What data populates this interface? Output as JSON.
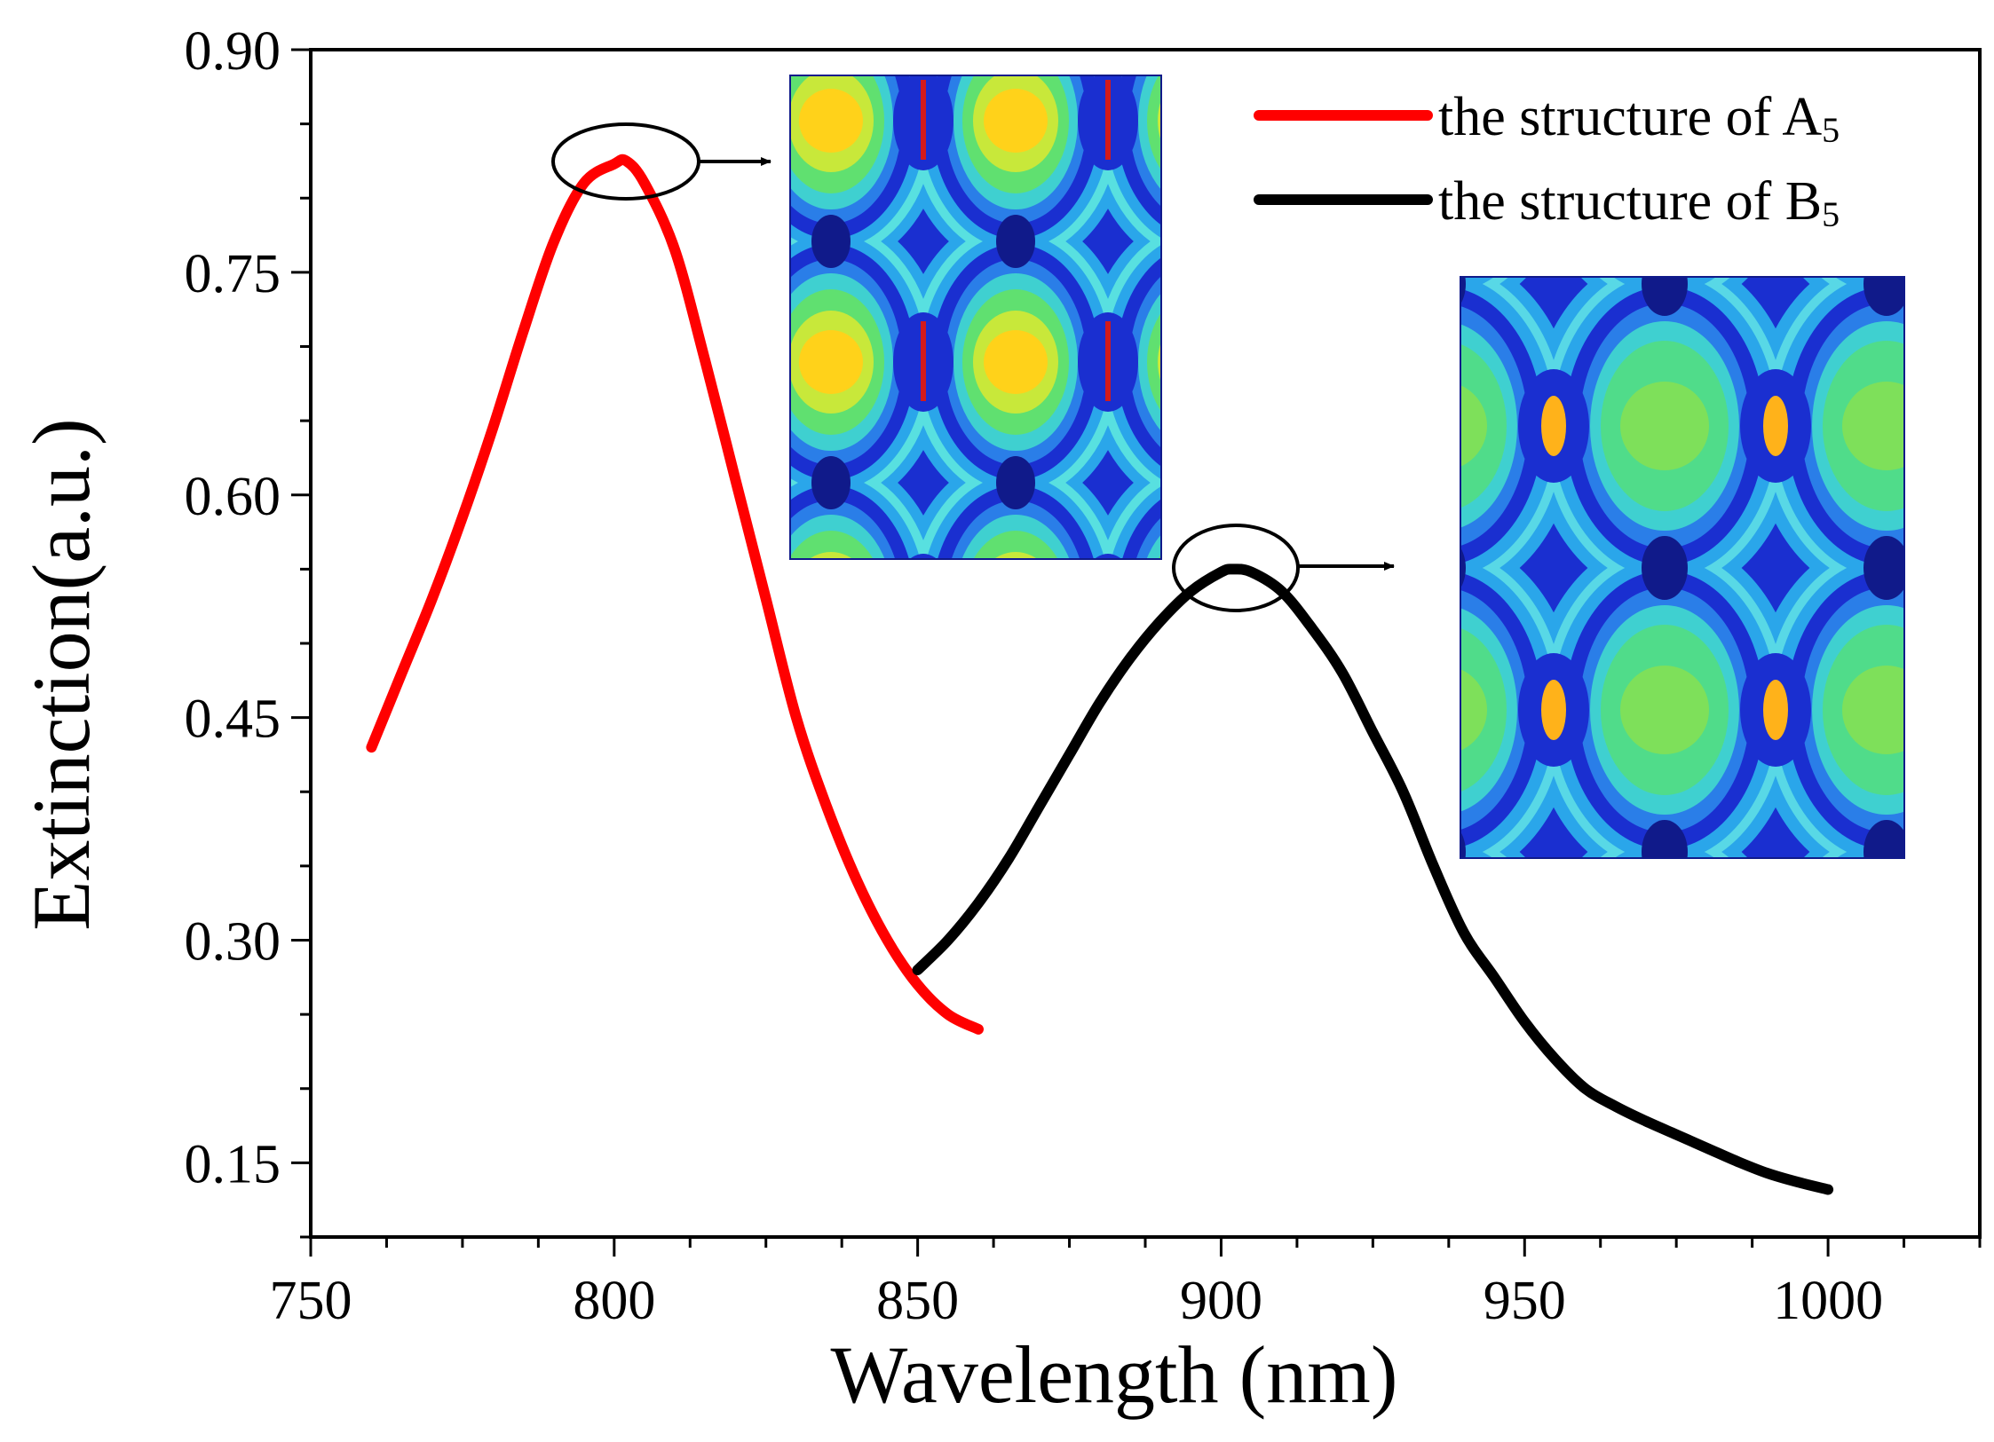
{
  "chart_data": {
    "type": "line",
    "title": "",
    "xlabel": "Wavelength (nm)",
    "ylabel": "Extinction(a.u.)",
    "xlim": [
      750,
      1025
    ],
    "ylim": [
      0.1,
      0.9
    ],
    "xticks": [
      750,
      800,
      850,
      900,
      950,
      1000
    ],
    "xtick_labels": [
      "750",
      "800",
      "850",
      "900",
      "950",
      "1000"
    ],
    "yticks": [
      0.15,
      0.3,
      0.45,
      0.6,
      0.75,
      0.9
    ],
    "ytick_labels": [
      "0.15",
      "0.30",
      "0.45",
      "0.60",
      "0.75",
      "0.90"
    ],
    "grid": false,
    "legend_position": "top-right",
    "series": [
      {
        "name": "the structure of A5",
        "label_main": "the structure of A",
        "label_sub": "5",
        "color": "#ff0000",
        "x": [
          760,
          765,
          770,
          775,
          780,
          785,
          790,
          795,
          800,
          802,
          805,
          810,
          815,
          820,
          825,
          830,
          835,
          840,
          845,
          850,
          855,
          860
        ],
        "y": [
          0.43,
          0.48,
          0.53,
          0.585,
          0.645,
          0.71,
          0.77,
          0.81,
          0.823,
          0.825,
          0.81,
          0.765,
          0.69,
          0.61,
          0.53,
          0.45,
          0.39,
          0.34,
          0.3,
          0.27,
          0.25,
          0.24
        ]
      },
      {
        "name": "the structure of B5",
        "label_main": "the structure of B",
        "label_sub": "5",
        "color": "#000000",
        "x": [
          850,
          855,
          860,
          865,
          870,
          875,
          880,
          885,
          890,
          895,
          900,
          902,
          905,
          910,
          915,
          920,
          925,
          930,
          935,
          940,
          945,
          950,
          955,
          960,
          965,
          970,
          975,
          980,
          985,
          990,
          995,
          1000
        ],
        "y": [
          0.28,
          0.3,
          0.325,
          0.355,
          0.39,
          0.425,
          0.46,
          0.49,
          0.515,
          0.535,
          0.548,
          0.55,
          0.548,
          0.535,
          0.51,
          0.48,
          0.44,
          0.4,
          0.35,
          0.305,
          0.275,
          0.245,
          0.22,
          0.2,
          0.188,
          0.178,
          0.169,
          0.16,
          0.151,
          0.143,
          0.137,
          0.132
        ]
      }
    ],
    "annotations": [
      {
        "type": "ellipse",
        "x": 802,
        "y": 0.82,
        "arrow_to": "inset-a5"
      },
      {
        "type": "ellipse",
        "x": 902,
        "y": 0.55,
        "arrow_to": "inset-b5"
      }
    ],
    "insets": [
      {
        "name": "inset-a5",
        "kind": "field-map",
        "palette": [
          "#1a33d6",
          "#1f8fe6",
          "#3fd0d0",
          "#56e07a",
          "#d8e83a",
          "#ffd21a",
          "#d41a1a"
        ]
      },
      {
        "name": "inset-b5",
        "kind": "field-map",
        "palette": [
          "#1a33d6",
          "#1f8fe6",
          "#3fd0d0",
          "#56e07a",
          "#a8e23a",
          "#ffb21a",
          "#d41a1a"
        ]
      }
    ]
  }
}
